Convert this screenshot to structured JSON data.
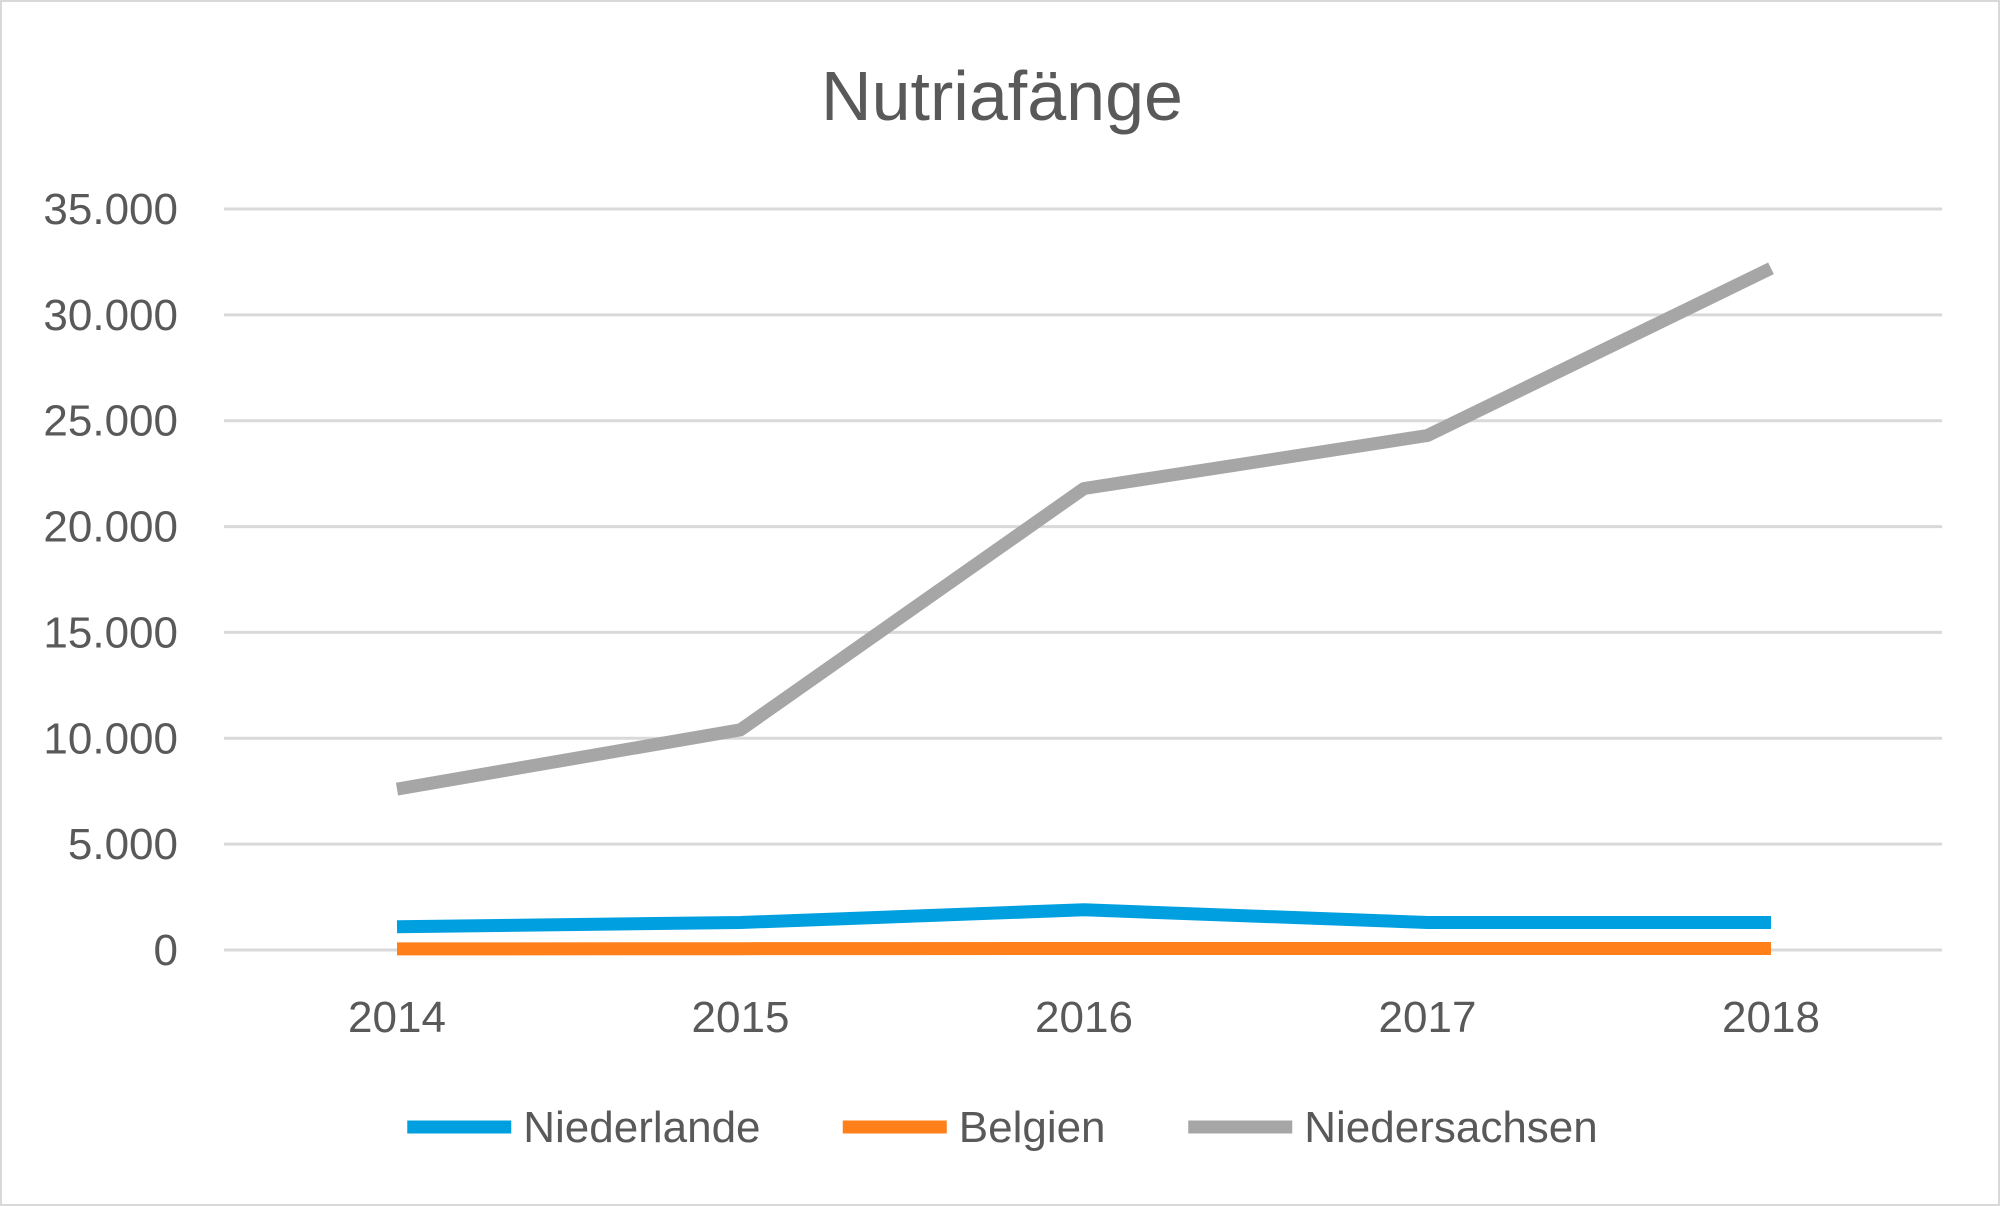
{
  "chart_data": {
    "type": "line",
    "title": "Nutriafänge",
    "xlabel": "",
    "ylabel": "",
    "categories": [
      "2014",
      "2015",
      "2016",
      "2017",
      "2018"
    ],
    "ylim": [
      0,
      35000
    ],
    "yticks": [
      0,
      5000,
      10000,
      15000,
      20000,
      25000,
      30000,
      35000
    ],
    "ytick_labels": [
      "0",
      "5.000",
      "10.000",
      "15.000",
      "20.000",
      "25.000",
      "30.000",
      "35.000"
    ],
    "grid": true,
    "legend_position": "bottom",
    "series": [
      {
        "name": "Niederlande",
        "color": "#00a0e0",
        "values": [
          1100,
          1300,
          1900,
          1300,
          1300
        ]
      },
      {
        "name": "Belgien",
        "color": "#ff7f1a",
        "values": [
          50,
          60,
          70,
          70,
          70
        ]
      },
      {
        "name": "Niedersachsen",
        "color": "#a6a6a6",
        "values": [
          7600,
          10400,
          21800,
          24300,
          32200
        ]
      }
    ]
  }
}
